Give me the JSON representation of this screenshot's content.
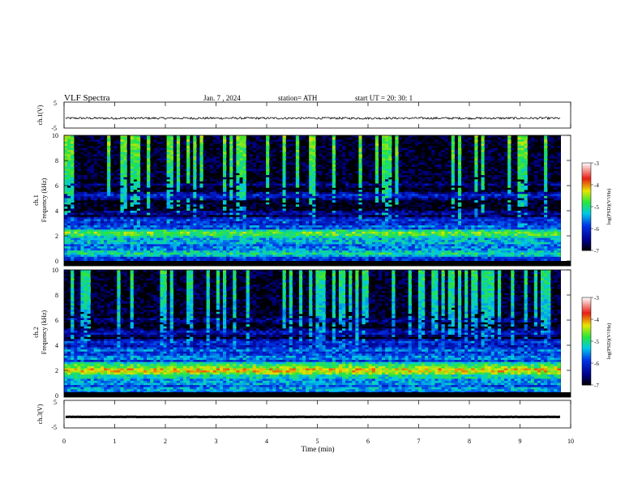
{
  "header": {
    "title": "VLF  Spectra",
    "date": "Jan.  7  , 2024",
    "station": "station= ATH",
    "start": "start  UT  =    20: 30: 1"
  },
  "chart_data": [
    {
      "type": "line",
      "name": "ch1-waveform",
      "ylabel": "ch.1(V)",
      "ylim": [
        -5,
        5
      ],
      "y_ticks": [
        "5",
        "-5"
      ],
      "xlim": [
        0,
        10
      ],
      "x_ticks": [
        0,
        1,
        2,
        3,
        4,
        5,
        6,
        7,
        8,
        9,
        10
      ],
      "series": [
        {
          "baseline_v": -1.2,
          "noise_v": 0.4,
          "line_color": "#000000"
        }
      ]
    },
    {
      "type": "heatmap",
      "name": "ch1-spectrogram",
      "ylabel": "ch.1",
      "ylabel2": "Frequency  (kHz)",
      "ylim": [
        0,
        10
      ],
      "y_ticks": [
        "0",
        "2",
        "4",
        "6",
        "8",
        "10"
      ],
      "xlim": [
        0,
        9.8
      ],
      "colorbar": {
        "label": "log(PSD)(V²/Hz)",
        "range": [
          -7,
          -3
        ],
        "ticks": [
          "-3",
          "-4",
          "-5",
          "-6",
          "-7"
        ]
      },
      "bands": [
        {
          "f": 0.2,
          "level": -5.8
        },
        {
          "f": 0.6,
          "level": -5.0
        },
        {
          "f": 1.0,
          "level": -5.4
        },
        {
          "f": 1.5,
          "level": -5.2
        },
        {
          "f": 1.9,
          "level": -5.1
        },
        {
          "f": 2.2,
          "level": -4.6
        },
        {
          "f": 2.7,
          "level": -5.6
        },
        {
          "f": 3.2,
          "level": -5.8
        },
        {
          "f": 3.8,
          "level": -6.3
        },
        {
          "f": 4.5,
          "level": -6.8
        },
        {
          "f": 5.2,
          "level": -6.0
        },
        {
          "f": 6.1,
          "level": -6.5
        }
      ],
      "burst_level": -4.6
    },
    {
      "type": "heatmap",
      "name": "ch2-spectrogram",
      "ylabel": "ch.2",
      "ylabel2": "Frequency  (kHz)",
      "ylim": [
        0,
        10
      ],
      "y_ticks": [
        "0",
        "2",
        "4",
        "6",
        "8",
        "10"
      ],
      "xlim": [
        0,
        9.8
      ],
      "colorbar": {
        "label": "log(PSD)(V²/Hz)",
        "range": [
          -7,
          -3
        ],
        "ticks": [
          "-3",
          "-4",
          "-5",
          "-6",
          "-7"
        ]
      },
      "bands": [
        {
          "f": 0.5,
          "level": -5.3
        },
        {
          "f": 1.0,
          "level": -5.3
        },
        {
          "f": 1.5,
          "level": -5.0
        },
        {
          "f": 2.0,
          "level": -4.1
        },
        {
          "f": 2.4,
          "level": -4.8
        },
        {
          "f": 3.0,
          "level": -5.4
        },
        {
          "f": 3.6,
          "level": -5.6
        },
        {
          "f": 4.2,
          "level": -5.9
        },
        {
          "f": 5.0,
          "level": -6.1
        },
        {
          "f": 6.0,
          "level": -6.4
        }
      ],
      "burst_level": -4.9
    },
    {
      "type": "line",
      "name": "ch3-waveform",
      "ylabel": "ch.3(V)",
      "ylim": [
        -5,
        5
      ],
      "y_ticks": [
        "5",
        "-5"
      ],
      "xlim": [
        0,
        10
      ],
      "x_ticks": [
        0,
        1,
        2,
        3,
        4,
        5,
        6,
        7,
        8,
        9,
        10
      ],
      "xlabel": "Time  (min)",
      "series": [
        {
          "baseline_v": -1.0,
          "noise_v": 0.05,
          "line_color": "#000000"
        }
      ]
    }
  ]
}
